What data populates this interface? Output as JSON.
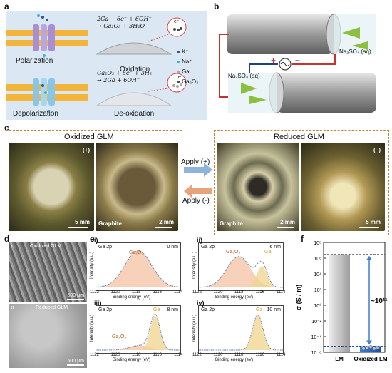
{
  "labels": {
    "a": "a",
    "b": "b",
    "c": "c",
    "d": "d",
    "e": "e",
    "f": "f"
  },
  "panel_a": {
    "polarization": "Polarization",
    "depolarization": "Depolarization",
    "oxidation": "Oxidation",
    "deoxidation": "De-oxidation",
    "eq_ox_1": "2Ga − 6e⁻ + 6OH⁻",
    "eq_ox_2": "→ Ga₂O₃ + 3H₂O",
    "eq_deox_1": "Ga₂O₃ + 6e⁻ + 3H₂",
    "eq_deox_2": "→ 2Ga + 6OH⁻",
    "electron": "e⁻",
    "legend": [
      {
        "symbol": "●",
        "label": "K⁺",
        "color": "#2e4fa5"
      },
      {
        "symbol": "●",
        "label": "Na⁺",
        "color": "#37b6d7"
      },
      {
        "symbol": "●",
        "label": "Ga",
        "color": "#a7a7a7"
      },
      {
        "symbol": "●",
        "label": "Ga₂O₃",
        "color": "#4a4a4a"
      }
    ]
  },
  "panel_b": {
    "solution_top": "Na₂SO₄ (aq)",
    "solution_bottom": "Na₂SO₄ (aq)",
    "plus": "+",
    "minus": "−"
  },
  "panel_c": {
    "oxidized_title": "Oxidized GLM",
    "reduced_title": "Reduced GLM",
    "apply_plus": "Apply (+)",
    "apply_minus": "Apply (-)",
    "photos": [
      {
        "corner": "(+)",
        "scale": "5 mm",
        "sub": ""
      },
      {
        "corner": "",
        "scale": "2 mm",
        "sub": "Graphite"
      },
      {
        "corner": "",
        "scale": "2 mm",
        "sub": "Graphite"
      },
      {
        "corner": "(−)",
        "scale": "5 mm",
        "sub": ""
      }
    ]
  },
  "panel_d": {
    "top_roman": "i",
    "top_label": "Oxidized GLM",
    "top_scale": "500 μm",
    "bot_roman": "ii",
    "bot_label": "Reduced GLM",
    "bot_scale": "500 μm"
  },
  "panel_e": {
    "ylabel": "Intensity (a.u.)",
    "xlabel": "Binding energy (eV)",
    "xticks": [
      "1122",
      "1120",
      "1118",
      "1116",
      "1114"
    ],
    "plots": [
      {
        "roman": "i)",
        "title": "Ga 2p",
        "depth": "0 nm",
        "labels": [
          {
            "text": "Ga₂O₃",
            "color": "#c0591b"
          }
        ]
      },
      {
        "roman": "ii)",
        "title": "Ga 2p",
        "depth": "6 nm",
        "labels": [
          {
            "text": "Ga₂O₃",
            "color": "#c0591b"
          },
          {
            "text": "Ga",
            "color": "#d39a24"
          }
        ]
      },
      {
        "roman": "iii)",
        "title": "Ga 2p",
        "depth": "8 nm",
        "labels": [
          {
            "text": "Ga",
            "color": "#d39a24"
          },
          {
            "text": "Ga₂O₃",
            "color": "#c0591b"
          }
        ]
      },
      {
        "roman": "iv)",
        "title": "Ga 2p",
        "depth": "10 nm",
        "labels": [
          {
            "text": "Ga",
            "color": "#d39a24"
          }
        ]
      }
    ]
  },
  "chart_data": {
    "type": "bar",
    "categories": [
      "LM",
      "Oxidized LM"
    ],
    "values": [
      3000000,
      6e-06
    ],
    "ylabel": "σ (S / m)",
    "yscale": "log",
    "ylim": [
      1e-06,
      100000000
    ],
    "yticks": [
      "10⁸",
      "10⁶",
      "10⁴",
      "10²",
      "10⁰",
      "10⁻²",
      "10⁻⁴",
      "10⁻⁶"
    ],
    "annotation": "~10¹¹",
    "scatter_points": [
      3e-06,
      4e-06,
      5e-06,
      3e-06,
      4e-06
    ]
  }
}
